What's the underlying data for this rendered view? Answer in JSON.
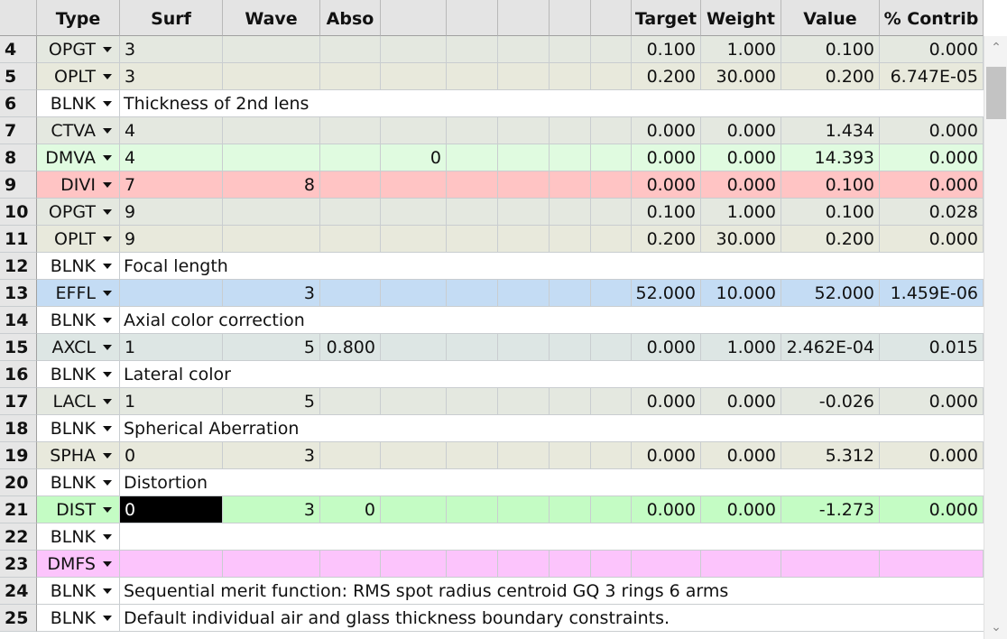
{
  "headers": [
    "",
    "Type",
    "Surf",
    "Wave",
    "Abso",
    "",
    "",
    "",
    "",
    "Target",
    "Weight",
    "Value",
    "% Contrib"
  ],
  "rows": [
    {
      "num": "4",
      "type": "OPGT",
      "color": "#e4e8e0",
      "c": [
        "3",
        "",
        "",
        "",
        "",
        "",
        "",
        ""
      ],
      "v": [
        "0.100",
        "1.000",
        "0.100",
        "0.000"
      ]
    },
    {
      "num": "5",
      "type": "OPLT",
      "color": "#e8e9dc",
      "c": [
        "3",
        "",
        "",
        "",
        "",
        "",
        "",
        ""
      ],
      "v": [
        "0.200",
        "30.000",
        "0.200",
        "6.747E-05"
      ]
    },
    {
      "num": "6",
      "type": "BLNK",
      "color": "#ffffff",
      "comment": "Thickness of 2nd lens"
    },
    {
      "num": "7",
      "type": "CTVA",
      "color": "#e4e8e0",
      "c": [
        "4",
        "",
        "",
        "",
        "",
        "",
        "",
        ""
      ],
      "v": [
        "0.000",
        "0.000",
        "1.434",
        "0.000"
      ]
    },
    {
      "num": "8",
      "type": "DMVA",
      "color": "#e0fbe0",
      "c": [
        "4",
        "",
        "",
        "0",
        "",
        "",
        "",
        ""
      ],
      "v": [
        "0.000",
        "0.000",
        "14.393",
        "0.000"
      ]
    },
    {
      "num": "9",
      "type": "DIVI",
      "color": "#ffc4c4",
      "c": [
        "7",
        "8",
        "",
        "",
        "",
        "",
        "",
        ""
      ],
      "v": [
        "0.000",
        "0.000",
        "0.100",
        "0.000"
      ]
    },
    {
      "num": "10",
      "type": "OPGT",
      "color": "#e4e8e0",
      "c": [
        "9",
        "",
        "",
        "",
        "",
        "",
        "",
        ""
      ],
      "v": [
        "0.100",
        "1.000",
        "0.100",
        "0.028"
      ]
    },
    {
      "num": "11",
      "type": "OPLT",
      "color": "#e8e9dc",
      "c": [
        "9",
        "",
        "",
        "",
        "",
        "",
        "",
        ""
      ],
      "v": [
        "0.200",
        "30.000",
        "0.200",
        "0.000"
      ]
    },
    {
      "num": "12",
      "type": "BLNK",
      "color": "#ffffff",
      "comment": "Focal length"
    },
    {
      "num": "13",
      "type": "EFFL",
      "color": "#c4dcf4",
      "c": [
        "",
        "3",
        "",
        "",
        "",
        "",
        "",
        ""
      ],
      "v": [
        "52.000",
        "10.000",
        "52.000",
        "1.459E-06"
      ]
    },
    {
      "num": "14",
      "type": "BLNK",
      "color": "#ffffff",
      "comment": "Axial color correction"
    },
    {
      "num": "15",
      "type": "AXCL",
      "color": "#dde6e4",
      "c": [
        "1",
        "5",
        "0.800",
        "",
        "",
        "",
        "",
        ""
      ],
      "v": [
        "0.000",
        "1.000",
        "2.462E-04",
        "0.015"
      ]
    },
    {
      "num": "16",
      "type": "BLNK",
      "color": "#ffffff",
      "comment": "Lateral color"
    },
    {
      "num": "17",
      "type": "LACL",
      "color": "#e4e8e0",
      "c": [
        "1",
        "5",
        "",
        "",
        "",
        "",
        "",
        ""
      ],
      "v": [
        "0.000",
        "0.000",
        "-0.026",
        "0.000"
      ]
    },
    {
      "num": "18",
      "type": "BLNK",
      "color": "#ffffff",
      "comment": "Spherical Aberration"
    },
    {
      "num": "19",
      "type": "SPHA",
      "color": "#e8e9dc",
      "c": [
        "0",
        "3",
        "",
        "",
        "",
        "",
        "",
        ""
      ],
      "v": [
        "0.000",
        "0.000",
        "5.312",
        "0.000"
      ]
    },
    {
      "num": "20",
      "type": "BLNK",
      "color": "#ffffff",
      "comment": "Distortion"
    },
    {
      "num": "21",
      "type": "DIST",
      "color": "#c4fcc4",
      "c": [
        "0",
        "3",
        "0",
        "",
        "",
        "",
        "",
        ""
      ],
      "v": [
        "0.000",
        "0.000",
        "-1.273",
        "0.000"
      ]
    },
    {
      "num": "22",
      "type": "BLNK",
      "color": "#ffffff",
      "comment": ""
    },
    {
      "num": "23",
      "type": "DMFS",
      "color": "#fcc4fc",
      "c": [
        "",
        "",
        "",
        "",
        "",
        "",
        "",
        ""
      ],
      "v": [
        "",
        "",
        "",
        ""
      ]
    },
    {
      "num": "24",
      "type": "BLNK",
      "color": "#ffffff",
      "comment": "Sequential merit function: RMS spot radius centroid GQ 3 rings 6 arms"
    },
    {
      "num": "25",
      "type": "BLNK",
      "color": "#ffffff",
      "comment": "Default individual air and glass thickness boundary constraints."
    }
  ],
  "scroll_up_icon": "chevron-up-icon",
  "scroll_down_icon": "chevron-down-icon"
}
